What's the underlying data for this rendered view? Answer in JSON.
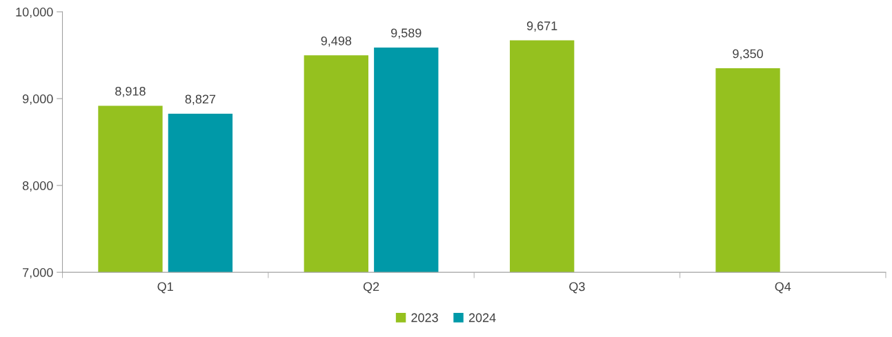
{
  "chart_data": {
    "type": "bar",
    "categories": [
      "Q1",
      "Q2",
      "Q3",
      "Q4"
    ],
    "series": [
      {
        "name": "2023",
        "color": "#95c11f",
        "values": [
          8918,
          9498,
          9671,
          9350
        ],
        "value_labels": [
          "8,918",
          "9,498",
          "9,671",
          "9,350"
        ]
      },
      {
        "name": "2024",
        "color": "#0099a8",
        "values": [
          8827,
          9589,
          null,
          null
        ],
        "value_labels": [
          "8,827",
          "9,589",
          null,
          null
        ]
      }
    ],
    "ylim": [
      7000,
      10000
    ],
    "yticks": [
      {
        "value": 7000,
        "label": "7,000"
      },
      {
        "value": 8000,
        "label": "8,000"
      },
      {
        "value": 9000,
        "label": "9,000"
      },
      {
        "value": 10000,
        "label": "10,000"
      }
    ],
    "grid": false,
    "legend": "bottom"
  }
}
